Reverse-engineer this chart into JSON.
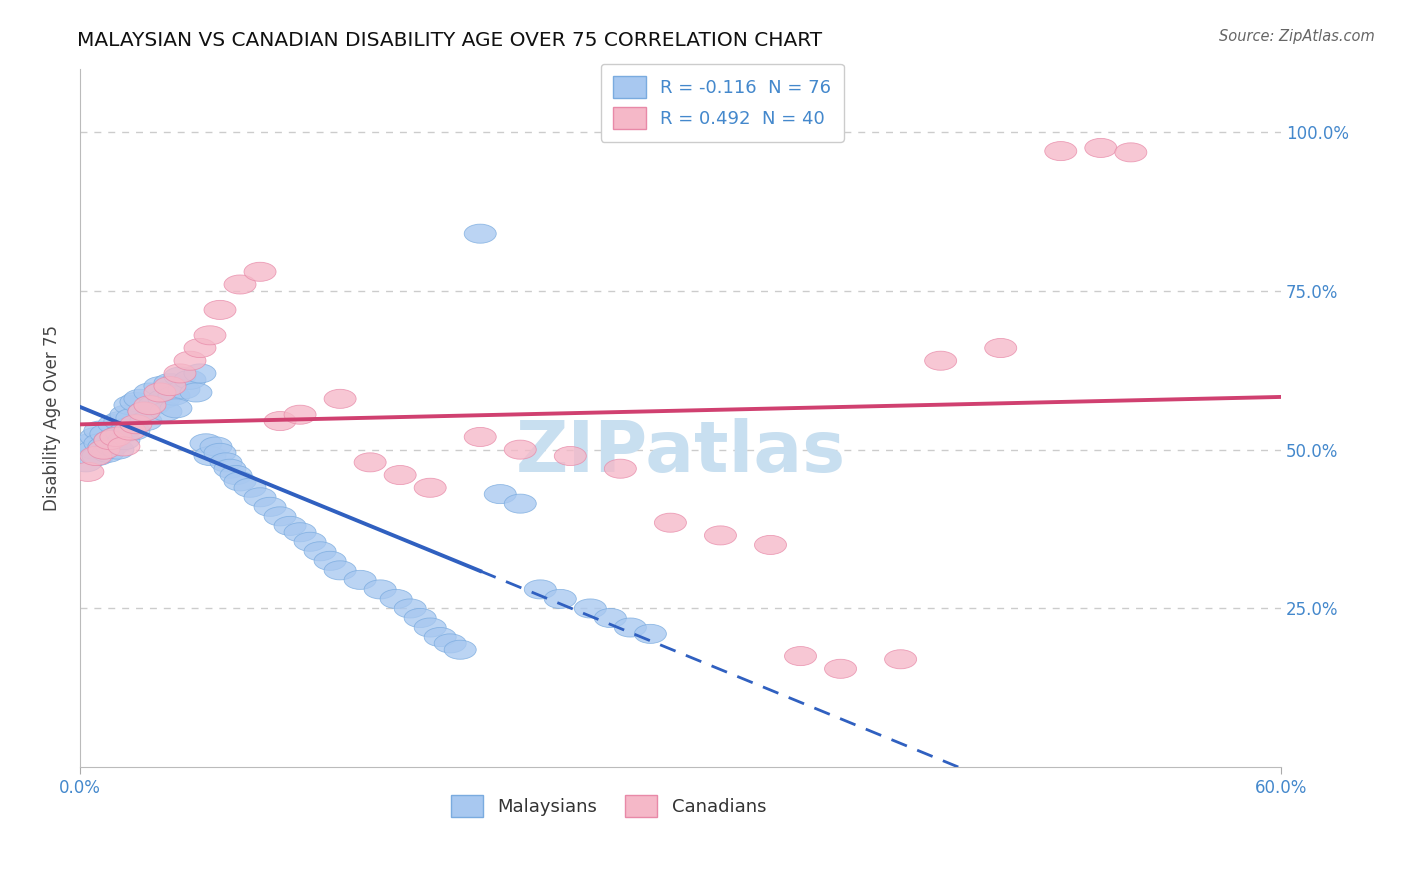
{
  "title": "MALAYSIAN VS CANADIAN DISABILITY AGE OVER 75 CORRELATION CHART",
  "source": "Source: ZipAtlas.com",
  "ylabel": "Disability Age Over 75",
  "xlim": [
    0.0,
    0.6
  ],
  "ylim": [
    0.0,
    1.1
  ],
  "r_malaysian": -0.116,
  "n_malaysian": 76,
  "r_canadian": 0.492,
  "n_canadian": 40,
  "malaysian_color": "#a8c8f0",
  "malaysian_edge": "#7aabdf",
  "canadian_color": "#f5b8c8",
  "canadian_edge": "#e889a8",
  "trendline_malaysian_color": "#3060c0",
  "trendline_canadian_color": "#d04070",
  "background_color": "#ffffff",
  "grid_color": "#cccccc",
  "axis_label_color": "#4488cc",
  "title_color": "#111111",
  "ytick_labels": [
    "25.0%",
    "50.0%",
    "75.0%",
    "100.0%"
  ],
  "ytick_vals": [
    0.25,
    0.5,
    0.75,
    1.0
  ],
  "xtick_labels": [
    "0.0%",
    "60.0%"
  ],
  "xtick_vals": [
    0.0,
    0.6
  ],
  "malaysians_x": [
    0.003,
    0.005,
    0.007,
    0.008,
    0.009,
    0.01,
    0.01,
    0.012,
    0.013,
    0.014,
    0.015,
    0.016,
    0.017,
    0.018,
    0.019,
    0.02,
    0.021,
    0.022,
    0.023,
    0.024,
    0.025,
    0.026,
    0.027,
    0.028,
    0.03,
    0.032,
    0.033,
    0.035,
    0.037,
    0.04,
    0.042,
    0.043,
    0.045,
    0.047,
    0.048,
    0.05,
    0.052,
    0.055,
    0.058,
    0.06,
    0.063,
    0.065,
    0.068,
    0.07,
    0.073,
    0.075,
    0.078,
    0.08,
    0.085,
    0.09,
    0.095,
    0.1,
    0.105,
    0.11,
    0.115,
    0.12,
    0.125,
    0.13,
    0.14,
    0.15,
    0.158,
    0.165,
    0.17,
    0.175,
    0.18,
    0.185,
    0.19,
    0.2,
    0.21,
    0.22,
    0.23,
    0.24,
    0.255,
    0.265,
    0.275,
    0.285
  ],
  "malaysians_y": [
    0.48,
    0.51,
    0.5,
    0.52,
    0.49,
    0.53,
    0.51,
    0.505,
    0.525,
    0.495,
    0.515,
    0.505,
    0.54,
    0.52,
    0.5,
    0.545,
    0.525,
    0.515,
    0.555,
    0.535,
    0.57,
    0.55,
    0.53,
    0.575,
    0.58,
    0.56,
    0.545,
    0.59,
    0.57,
    0.6,
    0.58,
    0.56,
    0.605,
    0.585,
    0.565,
    0.615,
    0.595,
    0.61,
    0.59,
    0.62,
    0.51,
    0.49,
    0.505,
    0.495,
    0.48,
    0.47,
    0.46,
    0.45,
    0.44,
    0.425,
    0.41,
    0.395,
    0.38,
    0.37,
    0.355,
    0.34,
    0.325,
    0.31,
    0.295,
    0.28,
    0.265,
    0.25,
    0.235,
    0.22,
    0.205,
    0.195,
    0.185,
    0.84,
    0.43,
    0.415,
    0.28,
    0.265,
    0.25,
    0.235,
    0.22,
    0.21
  ],
  "canadians_x": [
    0.004,
    0.008,
    0.012,
    0.015,
    0.018,
    0.022,
    0.025,
    0.028,
    0.032,
    0.035,
    0.04,
    0.045,
    0.05,
    0.055,
    0.06,
    0.065,
    0.07,
    0.08,
    0.09,
    0.1,
    0.11,
    0.13,
    0.145,
    0.16,
    0.175,
    0.2,
    0.22,
    0.245,
    0.27,
    0.295,
    0.32,
    0.345,
    0.36,
    0.38,
    0.41,
    0.43,
    0.46,
    0.49,
    0.51,
    0.525
  ],
  "canadians_y": [
    0.465,
    0.49,
    0.5,
    0.515,
    0.52,
    0.505,
    0.53,
    0.54,
    0.56,
    0.57,
    0.59,
    0.6,
    0.62,
    0.64,
    0.66,
    0.68,
    0.72,
    0.76,
    0.78,
    0.545,
    0.555,
    0.58,
    0.48,
    0.46,
    0.44,
    0.52,
    0.5,
    0.49,
    0.47,
    0.385,
    0.365,
    0.35,
    0.175,
    0.155,
    0.17,
    0.64,
    0.66,
    0.97,
    0.975,
    0.968
  ]
}
